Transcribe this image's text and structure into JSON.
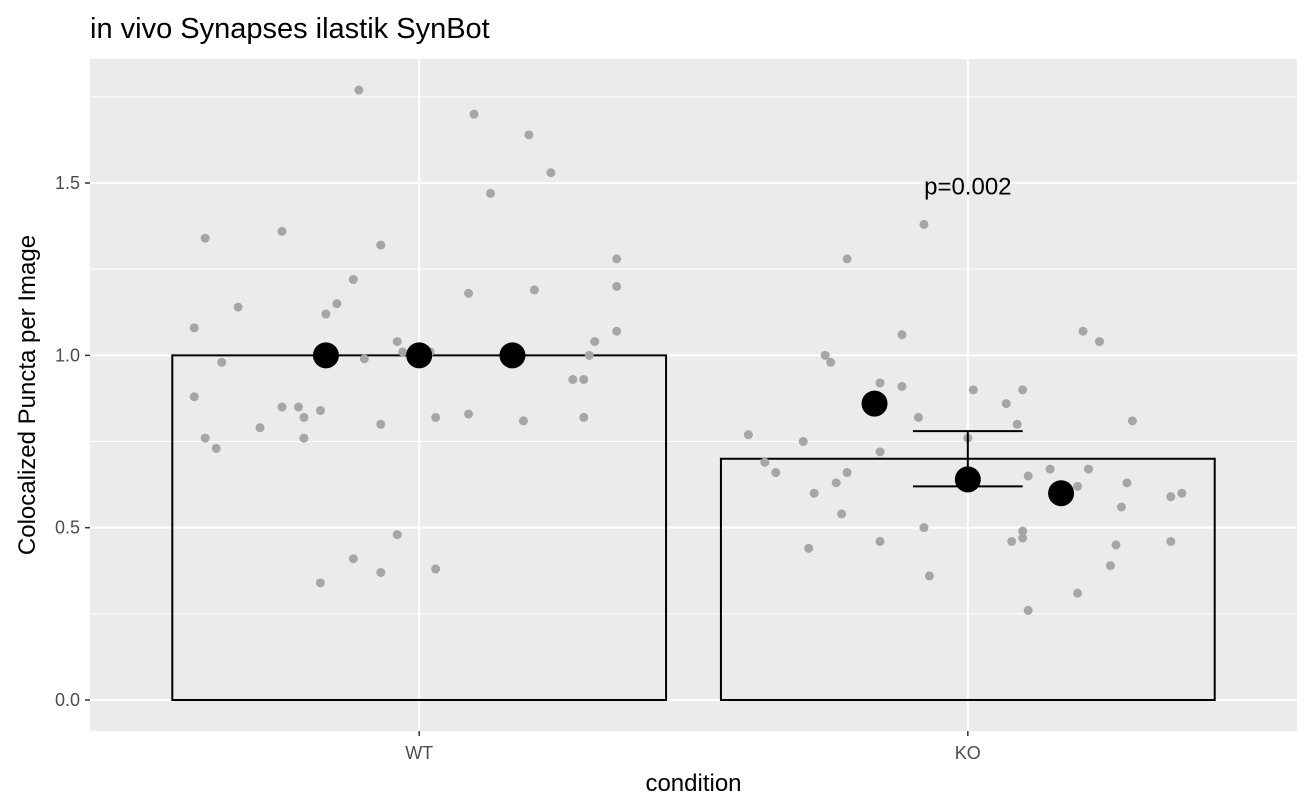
{
  "chart_data": {
    "type": "bar",
    "title": "in vivo Synapses ilastik SynBot",
    "xlabel": "condition",
    "ylabel": "Colocalized Puncta per Image",
    "categories": [
      "WT",
      "KO"
    ],
    "values": [
      1.0,
      0.7
    ],
    "error_bars": [
      null,
      {
        "low": 0.62,
        "high": 0.78
      }
    ],
    "ylim": [
      -0.09,
      1.86
    ],
    "yticks": [
      0.0,
      0.5,
      1.0,
      1.5
    ],
    "ytick_labels": [
      "0.0",
      "0.5",
      "1.0",
      "1.5"
    ],
    "grid": true,
    "background": "#ebebeb",
    "annotations": [
      {
        "text": "p=0.002",
        "category": "KO",
        "y": 1.49
      }
    ],
    "summary_points": {
      "color": "#000000",
      "points": [
        {
          "category": "WT",
          "offset": -0.17,
          "y": 1.0
        },
        {
          "category": "WT",
          "offset": 0.0,
          "y": 1.0
        },
        {
          "category": "WT",
          "offset": 0.17,
          "y": 1.0
        },
        {
          "category": "KO",
          "offset": -0.17,
          "y": 0.86
        },
        {
          "category": "KO",
          "offset": 0.0,
          "y": 0.64
        },
        {
          "category": "KO",
          "offset": 0.17,
          "y": 0.6
        }
      ]
    },
    "jitter_points": {
      "color": "#a6a6a6",
      "WT": [
        [
          -0.39,
          1.34
        ],
        [
          -0.39,
          0.76
        ],
        [
          -0.37,
          0.73
        ],
        [
          -0.36,
          0.98
        ],
        [
          -0.41,
          1.08
        ],
        [
          -0.41,
          0.88
        ],
        [
          -0.33,
          1.14
        ],
        [
          -0.29,
          0.79
        ],
        [
          -0.25,
          1.36
        ],
        [
          -0.25,
          0.85
        ],
        [
          -0.22,
          0.85
        ],
        [
          -0.21,
          0.82
        ],
        [
          -0.21,
          0.76
        ],
        [
          -0.18,
          0.84
        ],
        [
          -0.17,
          1.12
        ],
        [
          -0.15,
          1.15
        ],
        [
          -0.18,
          0.34
        ],
        [
          -0.12,
          1.22
        ],
        [
          -0.11,
          1.77
        ],
        [
          -0.1,
          0.99
        ],
        [
          -0.12,
          0.41
        ],
        [
          -0.07,
          1.32
        ],
        [
          -0.07,
          0.8
        ],
        [
          -0.07,
          0.37
        ],
        [
          -0.04,
          1.04
        ],
        [
          -0.04,
          0.48
        ],
        [
          -0.03,
          1.01
        ],
        [
          0.03,
          0.82
        ],
        [
          0.02,
          1.01
        ],
        [
          0.03,
          0.38
        ],
        [
          0.09,
          1.18
        ],
        [
          0.09,
          0.83
        ],
        [
          0.1,
          1.7
        ],
        [
          0.13,
          1.47
        ],
        [
          0.2,
          1.64
        ],
        [
          0.19,
          0.81
        ],
        [
          0.21,
          1.19
        ],
        [
          0.24,
          1.53
        ],
        [
          0.28,
          0.93
        ],
        [
          0.3,
          0.93
        ],
        [
          0.3,
          0.82
        ],
        [
          0.31,
          1.0
        ],
        [
          0.32,
          1.04
        ],
        [
          0.36,
          1.28
        ],
        [
          0.36,
          1.2
        ],
        [
          0.36,
          1.07
        ]
      ],
      "KO": [
        [
          -0.4,
          0.77
        ],
        [
          -0.37,
          0.69
        ],
        [
          -0.35,
          0.66
        ],
        [
          -0.3,
          0.75
        ],
        [
          -0.28,
          0.6
        ],
        [
          -0.29,
          0.44
        ],
        [
          -0.26,
          1.0
        ],
        [
          -0.25,
          0.98
        ],
        [
          -0.24,
          0.63
        ],
        [
          -0.23,
          0.54
        ],
        [
          -0.22,
          0.66
        ],
        [
          -0.22,
          1.28
        ],
        [
          -0.16,
          0.92
        ],
        [
          -0.16,
          0.72
        ],
        [
          -0.16,
          0.46
        ],
        [
          -0.12,
          0.91
        ],
        [
          -0.12,
          1.06
        ],
        [
          -0.09,
          0.82
        ],
        [
          -0.08,
          0.5
        ],
        [
          -0.07,
          0.36
        ],
        [
          -0.08,
          1.38
        ],
        [
          0.01,
          0.9
        ],
        [
          0.0,
          0.76
        ],
        [
          0.07,
          0.86
        ],
        [
          0.09,
          0.8
        ],
        [
          0.1,
          0.9
        ],
        [
          0.1,
          0.49
        ],
        [
          0.1,
          0.47
        ],
        [
          0.08,
          0.46
        ],
        [
          0.11,
          0.65
        ],
        [
          0.11,
          0.26
        ],
        [
          0.15,
          0.67
        ],
        [
          0.2,
          0.62
        ],
        [
          0.21,
          1.07
        ],
        [
          0.22,
          0.67
        ],
        [
          0.2,
          0.31
        ],
        [
          0.24,
          1.04
        ],
        [
          0.26,
          0.39
        ],
        [
          0.27,
          0.45
        ],
        [
          0.28,
          0.56
        ],
        [
          0.29,
          0.63
        ],
        [
          0.3,
          0.81
        ],
        [
          0.37,
          0.46
        ],
        [
          0.37,
          0.59
        ],
        [
          0.39,
          0.6
        ]
      ]
    }
  }
}
